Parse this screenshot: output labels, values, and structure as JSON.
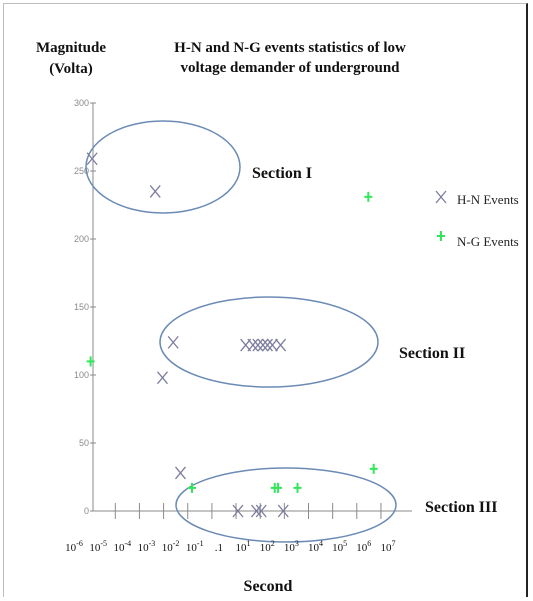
{
  "chart_data": {
    "type": "scatter",
    "title": "H-N and N-G events statistics of low voltage demander of underground",
    "title_lines": [
      "H-N and N-G events statistics of low",
      "voltage demander of underground"
    ],
    "ylabel_lines": [
      "Magnitude",
      "(Volta)"
    ],
    "xlabel": "Second",
    "x_scale": "log",
    "xlim": [
      1e-06,
      10000000
    ],
    "ylim": [
      0,
      300
    ],
    "x_tick_labels": [
      "10-6",
      "10-5",
      "10-4",
      "10-3",
      "10-2",
      "10-1",
      ".1",
      "101",
      "102",
      "103",
      "104",
      "105",
      "106",
      "107"
    ],
    "y_tick_labels": [
      "0",
      "50",
      "100",
      "150",
      "200",
      "250",
      "300"
    ],
    "y_ticks": [
      0,
      50,
      100,
      150,
      200,
      250,
      300
    ],
    "grid": false,
    "legend_position": "right",
    "series": [
      {
        "name": "H-N Events",
        "marker": "x",
        "color": "#7c7c9e",
        "points": [
          [
            1.1e-05,
            259
          ],
          [
            0.0045,
            235
          ],
          [
            0.025,
            124
          ],
          [
            0.009,
            98
          ],
          [
            0.05,
            28
          ],
          [
            25,
            122
          ],
          [
            50,
            122
          ],
          [
            80,
            122
          ],
          [
            130,
            122
          ],
          [
            200,
            122
          ],
          [
            320,
            122
          ],
          [
            700,
            122
          ],
          [
            12,
            0
          ],
          [
            70,
            0
          ],
          [
            110,
            0
          ],
          [
            900,
            0
          ]
        ]
      },
      {
        "name": "N-G Events",
        "marker": "plus",
        "color": "#2ee85a",
        "points": [
          [
            9.5e-06,
            110
          ],
          [
            0.15,
            17
          ],
          [
            400,
            17
          ],
          [
            550,
            17
          ],
          [
            3500,
            17
          ],
          [
            3000000,
            231
          ],
          [
            5000000,
            31
          ]
        ]
      }
    ],
    "annotations": [
      {
        "text": "Section I"
      },
      {
        "text": "Section II"
      },
      {
        "text": "Section III"
      }
    ],
    "ellipse_color": "#6b8bb5"
  }
}
